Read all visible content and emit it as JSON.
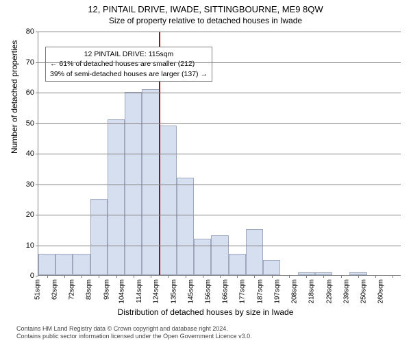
{
  "title_main": "12, PINTAIL DRIVE, IWADE, SITTINGBOURNE, ME9 8QW",
  "title_sub": "Size of property relative to detached houses in Iwade",
  "y_axis_title": "Number of detached properties",
  "x_axis_title": "Distribution of detached houses by size in Iwade",
  "chart": {
    "type": "histogram",
    "ylim": [
      0,
      80
    ],
    "ytick_step": 10,
    "bar_fill": "#d6dff0",
    "bar_border": "#a0a8c0",
    "axis_color": "#808080",
    "background_color": "#ffffff",
    "ref_line_color": "#c00000",
    "ref_line_x_label": "114sqm",
    "bar_relative_width": 1.0,
    "categories": [
      "51sqm",
      "62sqm",
      "72sqm",
      "83sqm",
      "93sqm",
      "104sqm",
      "114sqm",
      "124sqm",
      "135sqm",
      "145sqm",
      "156sqm",
      "166sqm",
      "177sqm",
      "187sqm",
      "197sqm",
      "208sqm",
      "218sqm",
      "229sqm",
      "239sqm",
      "250sqm",
      "260sqm"
    ],
    "values": [
      7,
      7,
      7,
      25,
      51,
      60,
      61,
      49,
      32,
      12,
      13,
      7,
      15,
      5,
      0,
      1,
      1,
      0,
      1,
      0,
      0
    ]
  },
  "annotation": {
    "line1": "12 PINTAIL DRIVE: 115sqm",
    "line2": "← 61% of detached houses are smaller (212)",
    "line3": "39% of semi-detached houses are larger (137) →"
  },
  "footer": {
    "line1": "Contains HM Land Registry data © Crown copyright and database right 2024.",
    "line2": "Contains public sector information licensed under the Open Government Licence v3.0."
  }
}
